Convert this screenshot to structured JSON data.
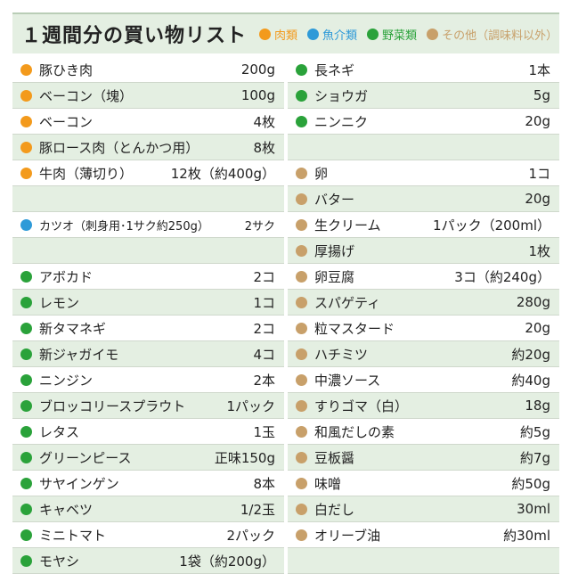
{
  "header": {
    "title": "１週間分の買い物リスト",
    "legend": [
      {
        "label": "肉類",
        "color": "#f39a1c"
      },
      {
        "label": "魚介類",
        "color": "#2e9ad8"
      },
      {
        "label": "野菜類",
        "color": "#2aa23a"
      },
      {
        "label": "その他（調味料以外）",
        "color": "#c8a06a"
      }
    ]
  },
  "colors": {
    "meat": "#f39a1c",
    "fish": "#2e9ad8",
    "veg": "#2aa23a",
    "other": "#c8a06a"
  },
  "left_items": [
    {
      "name": "豚ひき肉",
      "qty": "200g",
      "cat": "meat"
    },
    {
      "name": "ベーコン（塊）",
      "qty": "100g",
      "cat": "meat"
    },
    {
      "name": "ベーコン",
      "qty": "4枚",
      "cat": "meat"
    },
    {
      "name": "豚ロース肉（とんかつ用）",
      "qty": "8枚",
      "cat": "meat"
    },
    {
      "name": "牛肉（薄切り）",
      "qty": "12枚（約400g）",
      "cat": "meat"
    },
    {
      "name": "",
      "qty": "",
      "cat": ""
    },
    {
      "name": "カツオ（刺身用･1サク約250g）",
      "qty": "2サク",
      "cat": "fish"
    },
    {
      "name": "",
      "qty": "",
      "cat": ""
    },
    {
      "name": "アボカド",
      "qty": "2コ",
      "cat": "veg"
    },
    {
      "name": "レモン",
      "qty": "1コ",
      "cat": "veg"
    },
    {
      "name": "新タマネギ",
      "qty": "2コ",
      "cat": "veg"
    },
    {
      "name": "新ジャガイモ",
      "qty": "4コ",
      "cat": "veg"
    },
    {
      "name": "ニンジン",
      "qty": "2本",
      "cat": "veg"
    },
    {
      "name": "ブロッコリースプラウト",
      "qty": "1パック",
      "cat": "veg"
    },
    {
      "name": "レタス",
      "qty": "1玉",
      "cat": "veg"
    },
    {
      "name": "グリーンピース",
      "qty": "正味150g",
      "cat": "veg"
    },
    {
      "name": "サヤインゲン",
      "qty": "8本",
      "cat": "veg"
    },
    {
      "name": "キャベツ",
      "qty": "1/2玉",
      "cat": "veg"
    },
    {
      "name": "ミニトマト",
      "qty": "2パック",
      "cat": "veg"
    },
    {
      "name": "モヤシ",
      "qty": "1袋（約200g）",
      "cat": "veg"
    }
  ],
  "right_items": [
    {
      "name": "長ネギ",
      "qty": "1本",
      "cat": "veg"
    },
    {
      "name": "ショウガ",
      "qty": "5g",
      "cat": "veg"
    },
    {
      "name": "ニンニク",
      "qty": "20g",
      "cat": "veg"
    },
    {
      "name": "",
      "qty": "",
      "cat": ""
    },
    {
      "name": "卵",
      "qty": "1コ",
      "cat": "other"
    },
    {
      "name": "バター",
      "qty": "20g",
      "cat": "other"
    },
    {
      "name": "生クリーム",
      "qty": "1パック（200ml）",
      "cat": "other"
    },
    {
      "name": "厚揚げ",
      "qty": "1枚",
      "cat": "other"
    },
    {
      "name": "卵豆腐",
      "qty": "3コ（約240g）",
      "cat": "other"
    },
    {
      "name": "スパゲティ",
      "qty": "280g",
      "cat": "other"
    },
    {
      "name": "粒マスタード",
      "qty": "20g",
      "cat": "other"
    },
    {
      "name": "ハチミツ",
      "qty": "約20g",
      "cat": "other"
    },
    {
      "name": "中濃ソース",
      "qty": "約40g",
      "cat": "other"
    },
    {
      "name": "すりゴマ（白）",
      "qty": "18g",
      "cat": "other"
    },
    {
      "name": "和風だしの素",
      "qty": "約5g",
      "cat": "other"
    },
    {
      "name": "豆板醤",
      "qty": "約7g",
      "cat": "other"
    },
    {
      "name": "味噌",
      "qty": "約50g",
      "cat": "other"
    },
    {
      "name": "白だし",
      "qty": "30ml",
      "cat": "other"
    },
    {
      "name": "オリーブ油",
      "qty": "約30ml",
      "cat": "other"
    },
    {
      "name": "",
      "qty": "",
      "cat": ""
    }
  ]
}
